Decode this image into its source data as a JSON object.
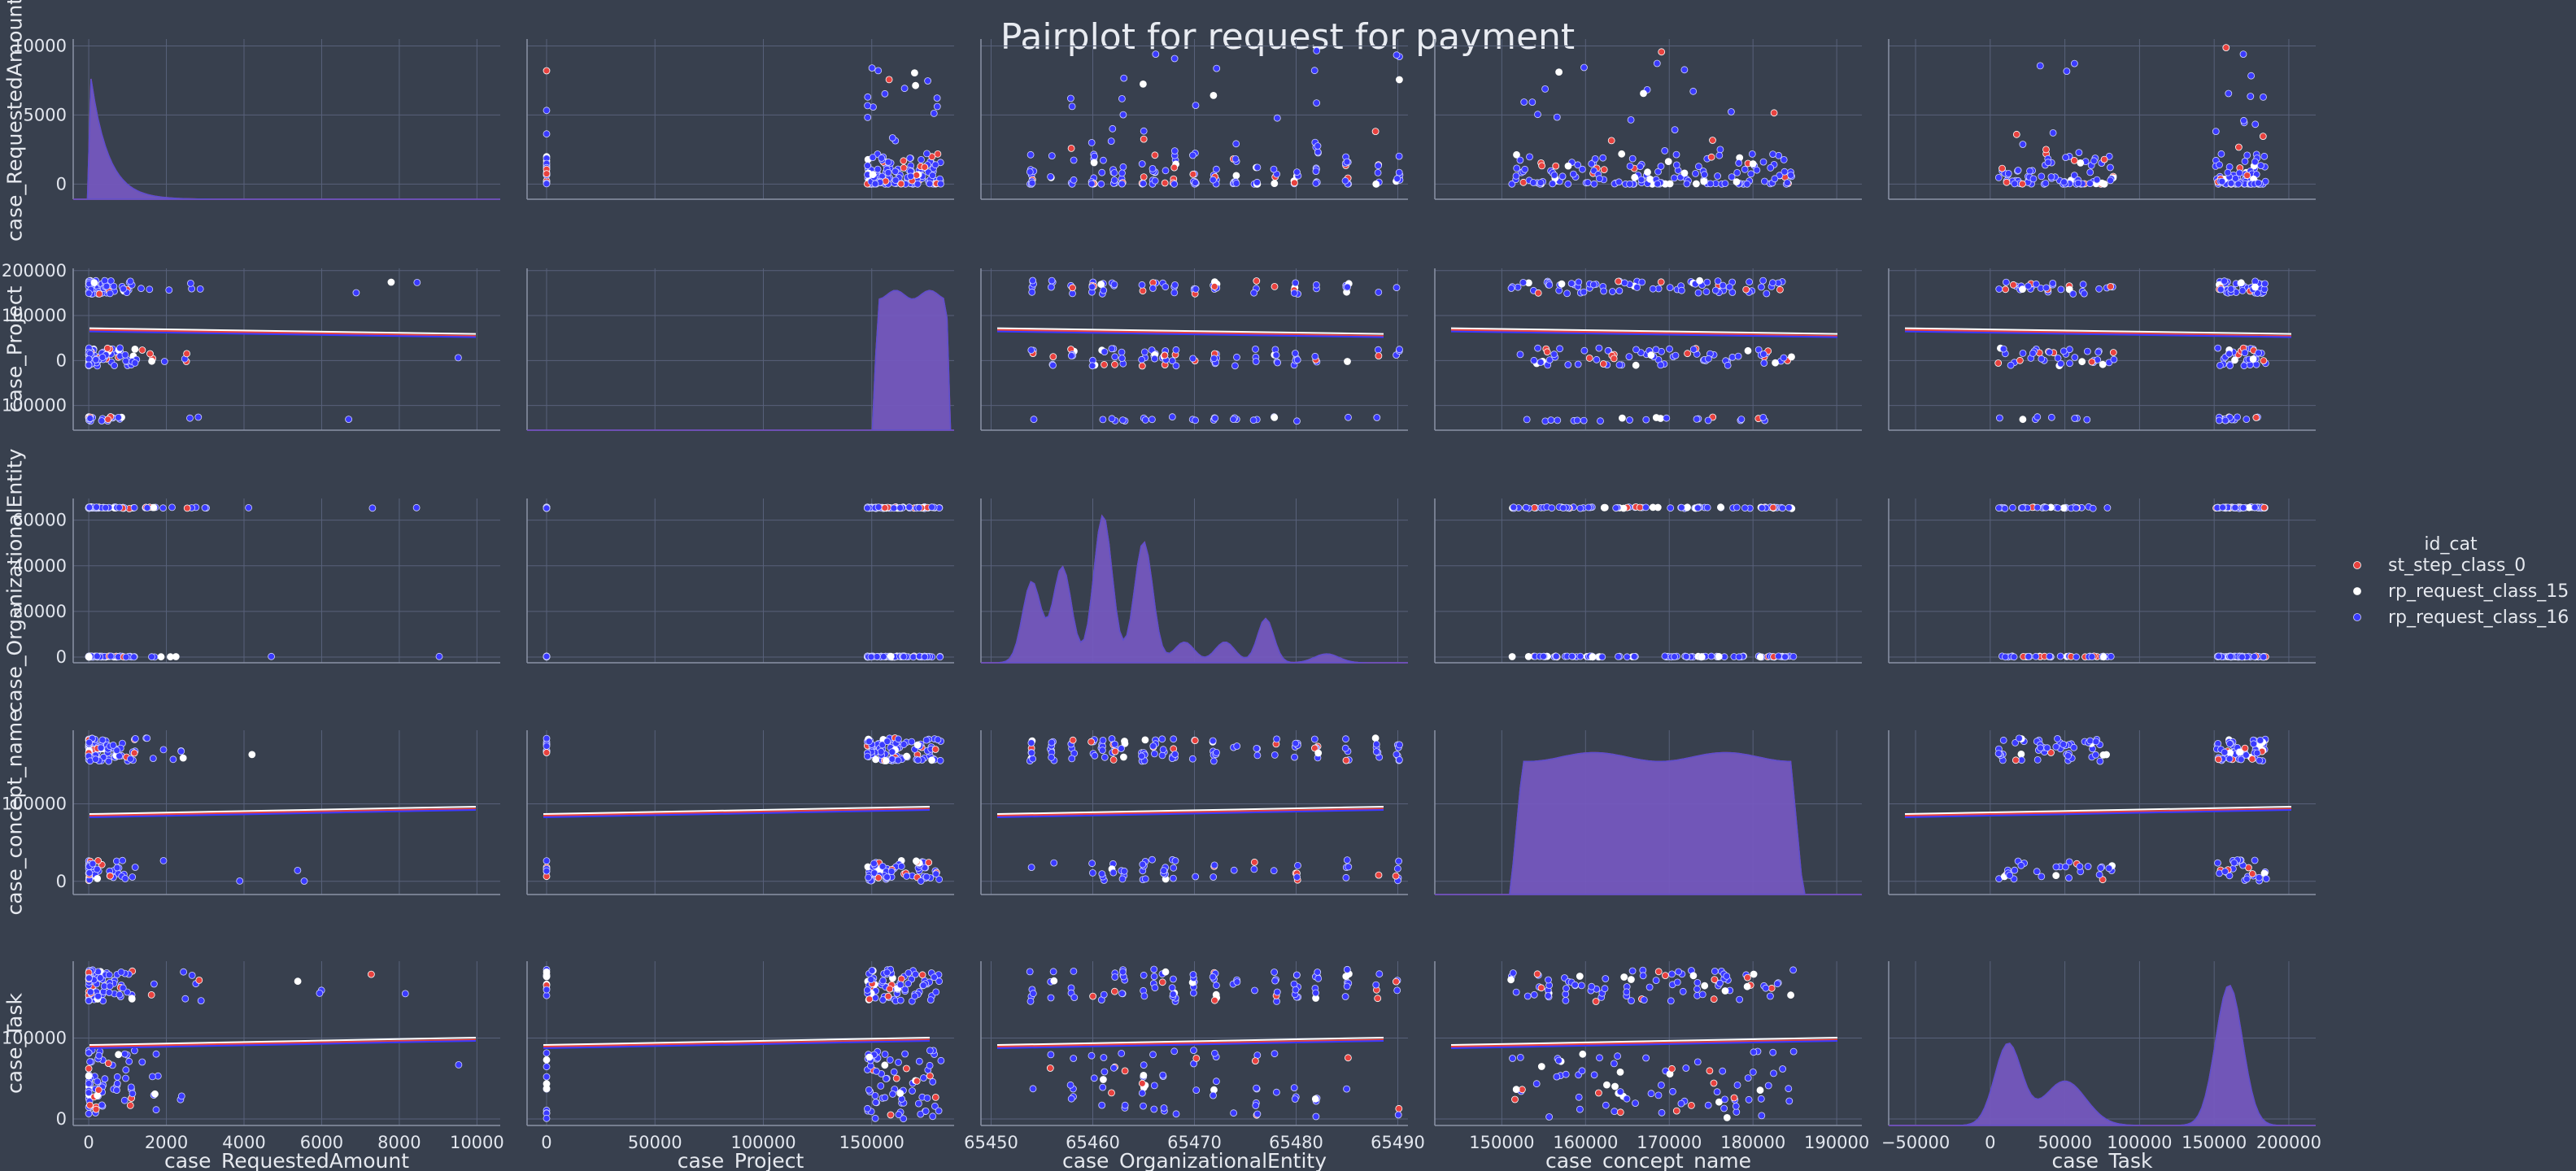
{
  "chart_data": {
    "type": "scatter",
    "title": "Pairplot for request for payment",
    "variables": [
      "case_RequestedAmount",
      "case_Project",
      "case_OrganizationalEntity",
      "case_concept_name",
      "case_Task"
    ],
    "legend": {
      "title": "id_cat",
      "placement": "right",
      "entries": [
        {
          "name": "st_step_class_0",
          "color": "#e8423f"
        },
        {
          "name": "rp_request_class_15",
          "color": "#ffffff"
        },
        {
          "name": "rp_request_class_16",
          "color": "#3a3aff"
        }
      ]
    },
    "x_ticks": [
      [
        "0",
        "2000",
        "4000",
        "6000",
        "8000",
        "10000"
      ],
      [
        "0",
        "50000",
        "100000",
        "150000"
      ],
      [
        "65450",
        "65460",
        "65470",
        "65480",
        "65490"
      ],
      [
        "150000",
        "160000",
        "170000",
        "180000",
        "190000"
      ],
      [
        "−50000",
        "0",
        "50000",
        "100000",
        "150000",
        "200000"
      ]
    ],
    "y_ticks": [
      [
        "0",
        "5000",
        "10000"
      ],
      [
        "100000",
        "0",
        "100000",
        "200000"
      ],
      [
        "0",
        "20000",
        "40000",
        "60000"
      ],
      [
        "0",
        "100000"
      ],
      [
        "0",
        "100000"
      ]
    ],
    "axis_ranges": {
      "case_RequestedAmount": [
        -400,
        10600
      ],
      "case_Project": [
        -9000,
        188000
      ],
      "case_OrganizationalEntity": [
        65449,
        65491
      ],
      "case_concept_name": [
        142000,
        193000
      ],
      "case_Task": [
        -68000,
        218000
      ]
    },
    "row_axis_ranges": {
      "case_RequestedAmount": [
        -1100,
        10500
      ],
      "case_Project": [
        -155000,
        205000
      ],
      "case_OrganizationalEntity": [
        -2500,
        69500
      ],
      "case_concept_name": [
        -17000,
        195000
      ],
      "case_Task": [
        -8000,
        195000
      ]
    },
    "diagonal": "kde",
    "lower_and_upper": "scatter with linear regression fit",
    "grid": true
  }
}
